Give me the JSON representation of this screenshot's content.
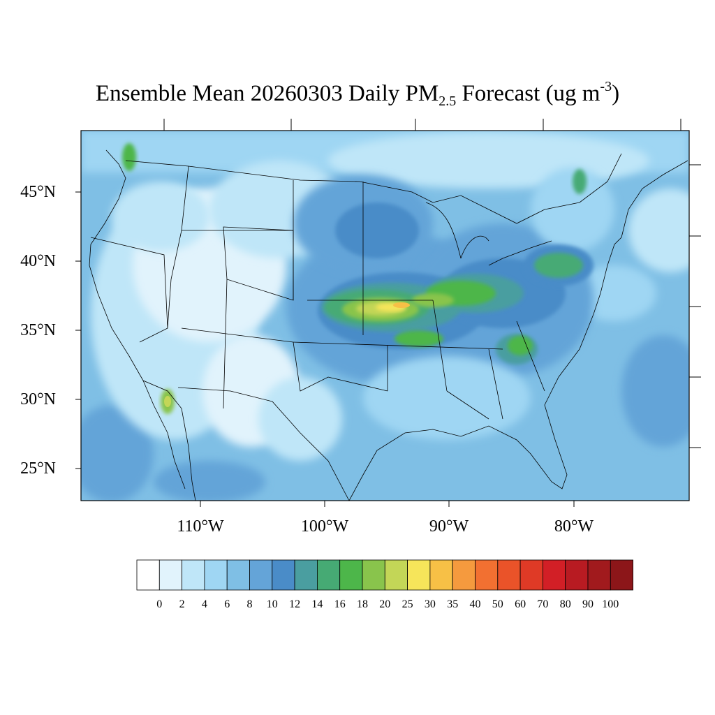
{
  "title": {
    "prefix": "Ensemble Mean 20260303 Daily PM",
    "subscript": "2.5",
    "middle": " Forecast (ug m",
    "superscript": "-3",
    "suffix": ")"
  },
  "lat_labels": [
    "45°N",
    "40°N",
    "35°N",
    "30°N",
    "25°N"
  ],
  "lon_labels": [
    "110°W",
    "100°W",
    "90°W",
    "80°W"
  ],
  "colorbar": {
    "labels": [
      "0",
      "2",
      "4",
      "6",
      "8",
      "10",
      "12",
      "14",
      "16",
      "18",
      "20",
      "25",
      "30",
      "35",
      "40",
      "50",
      "60",
      "70",
      "80",
      "90",
      "100"
    ],
    "colors": [
      "#ffffff",
      "#e1f3fc",
      "#bfe6f8",
      "#9fd6f3",
      "#7fbfe5",
      "#64a4d8",
      "#4a8cc8",
      "#4a9ea0",
      "#46aa74",
      "#4db64a",
      "#89c44c",
      "#c3d657",
      "#f6e55a",
      "#f7c046",
      "#f59a3e",
      "#f27031",
      "#ea5329",
      "#df3a26",
      "#d21f26",
      "#b81b22",
      "#a11a1d",
      "#8c1619"
    ]
  }
}
